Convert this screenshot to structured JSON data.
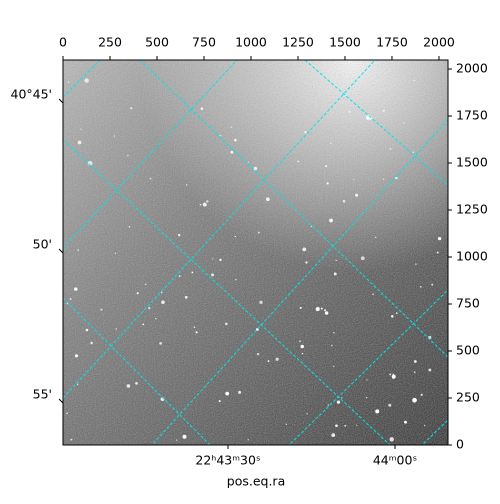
{
  "chart_data": {
    "type": "image",
    "xlabel": "pos.eq.ra",
    "xlim": [
      0,
      2048
    ],
    "xticks": [
      0,
      250,
      500,
      750,
      1000,
      1250,
      1500,
      1750,
      2000
    ],
    "ylim": [
      0,
      2048
    ],
    "yticks": [
      0,
      250,
      500,
      750,
      1000,
      1250,
      1500,
      1750,
      2000
    ],
    "ra_labels": [
      "22ʰ43ᵐ30ˢ",
      "44ᵐ00ˢ"
    ],
    "dec_labels": [
      "40°45'",
      "50'",
      "55'"
    ],
    "grid_color": "#00e5e5"
  }
}
